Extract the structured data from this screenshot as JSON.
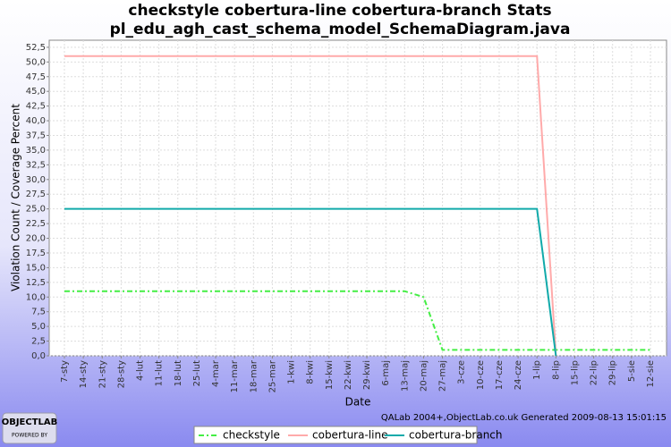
{
  "chart_data": {
    "type": "line",
    "title": "checkstyle cobertura-line cobertura-branch  Stats",
    "subtitle": "pl_edu_agh_cast_schema_model_SchemaDiagram.java",
    "y_label": "Violation Count / Coverage Percent",
    "x_label": "Date",
    "footer": "QALab 2004+,ObjectLab.co.uk Generated 2009-08-13 15:01:15",
    "logo": "OBJECTLAB",
    "logo_sub": "POWERED BY",
    "categories": [
      "7-sty",
      "14-sty",
      "21-sty",
      "28-sty",
      "4-lut",
      "11-lut",
      "18-lut",
      "25-lut",
      "4-mar",
      "11-mar",
      "18-mar",
      "25-mar",
      "1-kwi",
      "8-kwi",
      "15-kwi",
      "22-kwi",
      "29-kwi",
      "6-maj",
      "13-maj",
      "20-maj",
      "27-maj",
      "3-cze",
      "10-cze",
      "17-cze",
      "24-cze",
      "1-lip",
      "8-lip",
      "15-lip",
      "22-lip",
      "29-lip",
      "5-sie",
      "12-sie"
    ],
    "series": [
      {
        "name": "checkstyle",
        "color": "#44ee44",
        "dash": "6,3,2,3",
        "values": [
          11,
          11,
          11,
          11,
          11,
          11,
          11,
          11,
          11,
          11,
          11,
          11,
          11,
          11,
          11,
          11,
          11,
          11,
          11,
          10,
          1,
          1,
          1,
          1,
          1,
          1,
          1,
          1,
          1,
          1,
          1,
          1
        ]
      },
      {
        "name": "cobertura-line",
        "color": "#ffaaaa",
        "values": [
          51,
          51,
          51,
          51,
          51,
          51,
          51,
          51,
          51,
          51,
          51,
          51,
          51,
          51,
          51,
          51,
          51,
          51,
          51,
          51,
          51,
          51,
          51,
          51,
          51,
          51,
          0,
          null,
          null,
          null,
          null,
          null
        ]
      },
      {
        "name": "cobertura-branch",
        "color": "#11aaaa",
        "values": [
          25,
          25,
          25,
          25,
          25,
          25,
          25,
          25,
          25,
          25,
          25,
          25,
          25,
          25,
          25,
          25,
          25,
          25,
          25,
          25,
          25,
          25,
          25,
          25,
          25,
          25,
          0,
          null,
          null,
          null,
          null,
          null
        ]
      }
    ],
    "ylim": [
      0,
      53.7
    ],
    "yticks": [
      {
        "value": 0,
        "label": "0,0"
      },
      {
        "value": 2.5,
        "label": "2,5"
      },
      {
        "value": 5,
        "label": "5,0"
      },
      {
        "value": 7.5,
        "label": "7,5"
      },
      {
        "value": 10,
        "label": "10,0"
      },
      {
        "value": 12.5,
        "label": "12,5"
      },
      {
        "value": 15,
        "label": "15,0"
      },
      {
        "value": 17.5,
        "label": "17,5"
      },
      {
        "value": 20,
        "label": "20,0"
      },
      {
        "value": 22.5,
        "label": "22,5"
      },
      {
        "value": 25,
        "label": "25,0"
      },
      {
        "value": 27.5,
        "label": "27,5"
      },
      {
        "value": 30,
        "label": "30,0"
      },
      {
        "value": 32.5,
        "label": "32,5"
      },
      {
        "value": 35,
        "label": "35,0"
      },
      {
        "value": 37.5,
        "label": "37,5"
      },
      {
        "value": 40,
        "label": "40,0"
      },
      {
        "value": 42.5,
        "label": "42,5"
      },
      {
        "value": 45,
        "label": "45,0"
      },
      {
        "value": 47.5,
        "label": "47,5"
      },
      {
        "value": 50,
        "label": "50,0"
      },
      {
        "value": 52.5,
        "label": "52,5"
      }
    ],
    "grid": true
  }
}
